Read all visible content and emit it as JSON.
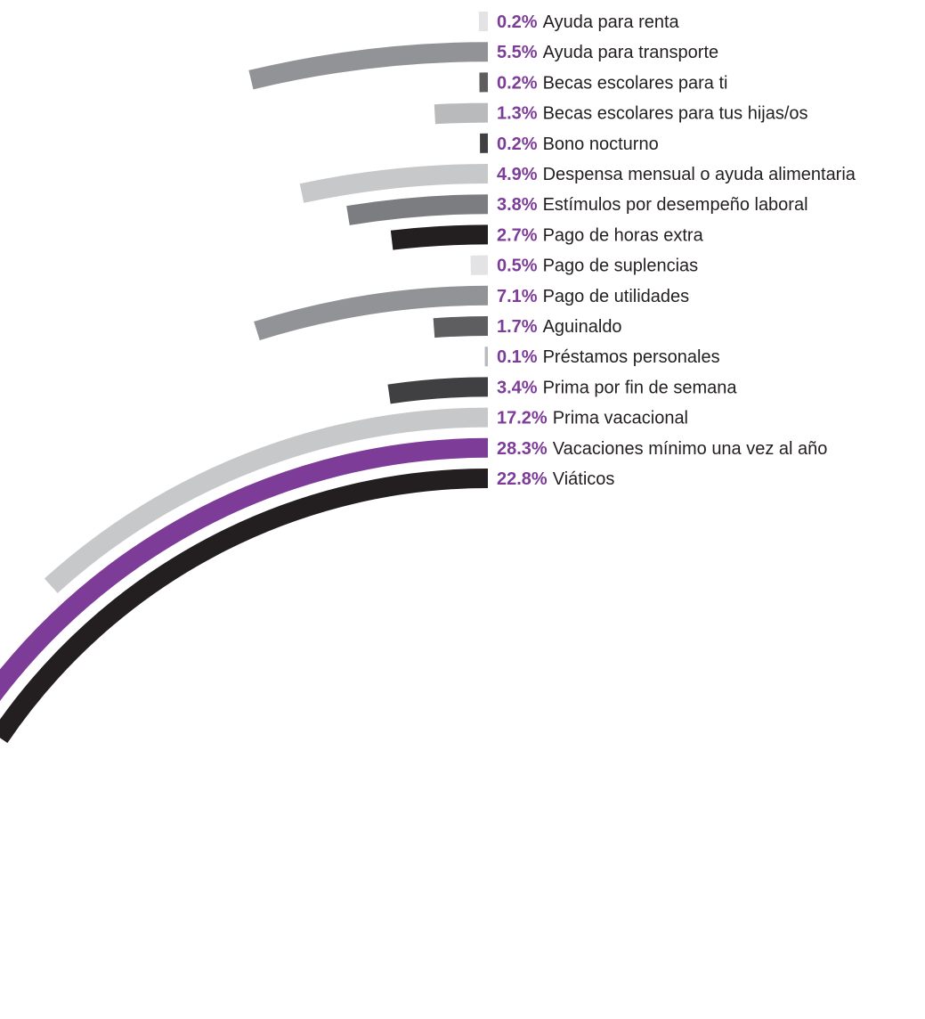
{
  "chart_data": {
    "type": "bar",
    "layout": "radial",
    "title": "",
    "unit": "%",
    "categories": [
      "Ayuda para renta",
      "Ayuda para transporte",
      "Becas escolares para ti",
      "Becas escolares para tus hijas/os",
      "Bono nocturno",
      "Despensa mensual o ayuda alimentaria",
      "Estímulos por desempeño laboral",
      "Pago de horas extra",
      "Pago de suplencias",
      "Pago de utilidades",
      "Aguinaldo",
      "Préstamos personales",
      "Prima por fin de semana",
      "Prima vacacional",
      "Vacaciones mínimo una vez al año",
      "Viáticos"
    ],
    "values": [
      0.2,
      5.5,
      0.2,
      1.3,
      0.2,
      4.9,
      3.8,
      2.7,
      0.5,
      7.1,
      1.7,
      0.1,
      3.4,
      17.2,
      28.3,
      22.8
    ],
    "value_labels": [
      "0.2%",
      "5.5%",
      "0.2%",
      "1.3%",
      "0.2%",
      "4.9%",
      "3.8%",
      "2.7%",
      "0.5%",
      "7.1%",
      "1.7%",
      "0.1%",
      "3.4%",
      "17.2%",
      "28.3%",
      "22.8%"
    ],
    "bar_colors": [
      "#e3e3e5",
      "#929396",
      "#5e5e61",
      "#b9babc",
      "#404042",
      "#c7c8ca",
      "#7c7d80",
      "#231f20",
      "#e3e3e5",
      "#929396",
      "#5e5e61",
      "#b9babc",
      "#404042",
      "#c7c8ca",
      "#7d3c98",
      "#231f20"
    ],
    "value_label_color": "#7d3c98",
    "label_color": "#231f20"
  }
}
